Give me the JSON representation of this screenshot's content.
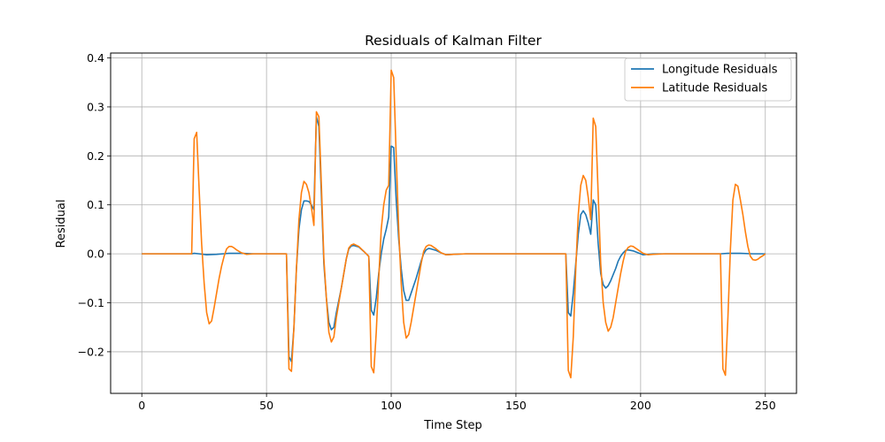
{
  "chart_data": {
    "type": "line",
    "title": "Residuals of Kalman Filter",
    "xlabel": "Time Step",
    "ylabel": "Residual",
    "xlim": [
      -12.5,
      262.5
    ],
    "ylim": [
      -0.285,
      0.41
    ],
    "xticks": [
      0,
      50,
      100,
      150,
      200,
      250
    ],
    "yticks": [
      -0.2,
      -0.1,
      0.0,
      0.1,
      0.2,
      0.3,
      0.4
    ],
    "ytick_labels": [
      "−0.2",
      "−0.1",
      "0.0",
      "0.1",
      "0.2",
      "0.3",
      "0.4"
    ],
    "grid": true,
    "legend_position": "top-right",
    "series": [
      {
        "name": "Longitude Residuals",
        "color": "#1f77b4",
        "points": [
          [
            0,
            0
          ],
          [
            20,
            0
          ],
          [
            21,
            0.001
          ],
          [
            23,
            0
          ],
          [
            26,
            -0.002
          ],
          [
            30,
            -0.001
          ],
          [
            35,
            0.001
          ],
          [
            40,
            0.001
          ],
          [
            45,
            0
          ],
          [
            50,
            0
          ],
          [
            58,
            0
          ],
          [
            59,
            -0.21
          ],
          [
            60,
            -0.22
          ],
          [
            61,
            -0.15
          ],
          [
            62,
            -0.03
          ],
          [
            63,
            0.05
          ],
          [
            64,
            0.09
          ],
          [
            65,
            0.108
          ],
          [
            66,
            0.108
          ],
          [
            67,
            0.107
          ],
          [
            68,
            0.1
          ],
          [
            69,
            0.09
          ],
          [
            70,
            0.28
          ],
          [
            71,
            0.26
          ],
          [
            72,
            0.12
          ],
          [
            73,
            -0.02
          ],
          [
            74,
            -0.09
          ],
          [
            75,
            -0.14
          ],
          [
            76,
            -0.155
          ],
          [
            77,
            -0.15
          ],
          [
            78,
            -0.12
          ],
          [
            80,
            -0.07
          ],
          [
            82,
            -0.01
          ],
          [
            83,
            0.01
          ],
          [
            84,
            0.016
          ],
          [
            85,
            0.017
          ],
          [
            87,
            0.014
          ],
          [
            89,
            0.005
          ],
          [
            91,
            -0.005
          ],
          [
            92,
            -0.115
          ],
          [
            93,
            -0.125
          ],
          [
            94,
            -0.09
          ],
          [
            95,
            -0.04
          ],
          [
            96,
            0.0
          ],
          [
            97,
            0.03
          ],
          [
            98,
            0.05
          ],
          [
            99,
            0.075
          ],
          [
            100,
            0.22
          ],
          [
            101,
            0.217
          ],
          [
            102,
            0.11
          ],
          [
            103,
            0.03
          ],
          [
            104,
            -0.03
          ],
          [
            105,
            -0.075
          ],
          [
            106,
            -0.095
          ],
          [
            107,
            -0.095
          ],
          [
            108,
            -0.08
          ],
          [
            110,
            -0.05
          ],
          [
            112,
            -0.015
          ],
          [
            113,
            0.0
          ],
          [
            114,
            0.008
          ],
          [
            115,
            0.011
          ],
          [
            116,
            0.01
          ],
          [
            118,
            0.007
          ],
          [
            120,
            0.002
          ],
          [
            122,
            -0.002
          ],
          [
            125,
            -0.001
          ],
          [
            130,
            0
          ],
          [
            150,
            0
          ],
          [
            170,
            0
          ],
          [
            171,
            -0.12
          ],
          [
            172,
            -0.127
          ],
          [
            173,
            -0.08
          ],
          [
            174,
            -0.02
          ],
          [
            175,
            0.04
          ],
          [
            176,
            0.08
          ],
          [
            177,
            0.088
          ],
          [
            178,
            0.08
          ],
          [
            179,
            0.063
          ],
          [
            180,
            0.04
          ],
          [
            181,
            0.11
          ],
          [
            182,
            0.1
          ],
          [
            183,
            0.02
          ],
          [
            184,
            -0.04
          ],
          [
            185,
            -0.063
          ],
          [
            186,
            -0.07
          ],
          [
            187,
            -0.065
          ],
          [
            188,
            -0.055
          ],
          [
            190,
            -0.03
          ],
          [
            191,
            -0.015
          ],
          [
            192,
            -0.005
          ],
          [
            193,
            0.002
          ],
          [
            194,
            0.007
          ],
          [
            195,
            0.008
          ],
          [
            197,
            0.006
          ],
          [
            199,
            0.002
          ],
          [
            201,
            -0.002
          ],
          [
            203,
            -0.001
          ],
          [
            205,
            0
          ],
          [
            232,
            0
          ],
          [
            235,
            0.001
          ],
          [
            240,
            0.001
          ],
          [
            245,
            0
          ],
          [
            250,
            0
          ]
        ]
      },
      {
        "name": "Latitude Residuals",
        "color": "#ff7f0e",
        "points": [
          [
            0,
            0
          ],
          [
            20,
            0
          ],
          [
            21,
            0.235
          ],
          [
            22,
            0.248
          ],
          [
            23,
            0.13
          ],
          [
            24,
            0.02
          ],
          [
            25,
            -0.06
          ],
          [
            26,
            -0.12
          ],
          [
            27,
            -0.143
          ],
          [
            28,
            -0.137
          ],
          [
            29,
            -0.11
          ],
          [
            30,
            -0.08
          ],
          [
            31,
            -0.05
          ],
          [
            32,
            -0.025
          ],
          [
            33,
            -0.005
          ],
          [
            34,
            0.01
          ],
          [
            35,
            0.015
          ],
          [
            36,
            0.015
          ],
          [
            37,
            0.012
          ],
          [
            38,
            0.008
          ],
          [
            40,
            0.002
          ],
          [
            42,
            -0.001
          ],
          [
            45,
            0
          ],
          [
            50,
            0
          ],
          [
            58,
            0
          ],
          [
            59,
            -0.235
          ],
          [
            60,
            -0.24
          ],
          [
            61,
            -0.15
          ],
          [
            62,
            -0.03
          ],
          [
            63,
            0.07
          ],
          [
            64,
            0.125
          ],
          [
            65,
            0.148
          ],
          [
            66,
            0.142
          ],
          [
            67,
            0.125
          ],
          [
            68,
            0.095
          ],
          [
            69,
            0.058
          ],
          [
            70,
            0.29
          ],
          [
            71,
            0.28
          ],
          [
            72,
            0.14
          ],
          [
            73,
            -0.01
          ],
          [
            74,
            -0.09
          ],
          [
            75,
            -0.16
          ],
          [
            76,
            -0.18
          ],
          [
            77,
            -0.17
          ],
          [
            78,
            -0.13
          ],
          [
            80,
            -0.07
          ],
          [
            82,
            -0.01
          ],
          [
            83,
            0.012
          ],
          [
            84,
            0.018
          ],
          [
            85,
            0.02
          ],
          [
            87,
            0.015
          ],
          [
            89,
            0.005
          ],
          [
            91,
            -0.005
          ],
          [
            92,
            -0.23
          ],
          [
            93,
            -0.243
          ],
          [
            94,
            -0.16
          ],
          [
            95,
            -0.05
          ],
          [
            96,
            0.05
          ],
          [
            97,
            0.1
          ],
          [
            98,
            0.13
          ],
          [
            99,
            0.14
          ],
          [
            100,
            0.375
          ],
          [
            101,
            0.36
          ],
          [
            102,
            0.2
          ],
          [
            103,
            0.05
          ],
          [
            104,
            -0.06
          ],
          [
            105,
            -0.14
          ],
          [
            106,
            -0.172
          ],
          [
            107,
            -0.165
          ],
          [
            108,
            -0.14
          ],
          [
            110,
            -0.08
          ],
          [
            112,
            -0.02
          ],
          [
            113,
            0.005
          ],
          [
            114,
            0.015
          ],
          [
            115,
            0.018
          ],
          [
            116,
            0.017
          ],
          [
            118,
            0.01
          ],
          [
            120,
            0.002
          ],
          [
            122,
            -0.002
          ],
          [
            125,
            -0.001
          ],
          [
            130,
            0
          ],
          [
            150,
            0
          ],
          [
            170,
            0
          ],
          [
            171,
            -0.238
          ],
          [
            172,
            -0.253
          ],
          [
            173,
            -0.17
          ],
          [
            174,
            -0.03
          ],
          [
            175,
            0.08
          ],
          [
            176,
            0.14
          ],
          [
            177,
            0.16
          ],
          [
            178,
            0.15
          ],
          [
            179,
            0.115
          ],
          [
            180,
            0.07
          ],
          [
            181,
            0.277
          ],
          [
            182,
            0.26
          ],
          [
            183,
            0.12
          ],
          [
            184,
            -0.02
          ],
          [
            185,
            -0.1
          ],
          [
            186,
            -0.14
          ],
          [
            187,
            -0.158
          ],
          [
            188,
            -0.15
          ],
          [
            189,
            -0.13
          ],
          [
            190,
            -0.1
          ],
          [
            191,
            -0.07
          ],
          [
            192,
            -0.04
          ],
          [
            193,
            -0.015
          ],
          [
            194,
            0.005
          ],
          [
            195,
            0.013
          ],
          [
            196,
            0.016
          ],
          [
            197,
            0.015
          ],
          [
            199,
            0.008
          ],
          [
            201,
            0.001
          ],
          [
            203,
            -0.002
          ],
          [
            205,
            -0.001
          ],
          [
            210,
            0
          ],
          [
            232,
            0
          ],
          [
            233,
            -0.235
          ],
          [
            234,
            -0.248
          ],
          [
            235,
            -0.13
          ],
          [
            236,
            0.01
          ],
          [
            237,
            0.11
          ],
          [
            238,
            0.142
          ],
          [
            239,
            0.138
          ],
          [
            240,
            0.11
          ],
          [
            241,
            0.08
          ],
          [
            242,
            0.045
          ],
          [
            243,
            0.015
          ],
          [
            244,
            -0.005
          ],
          [
            245,
            -0.012
          ],
          [
            246,
            -0.013
          ],
          [
            247,
            -0.011
          ],
          [
            248,
            -0.007
          ],
          [
            249,
            -0.004
          ],
          [
            250,
            0
          ]
        ]
      }
    ]
  }
}
